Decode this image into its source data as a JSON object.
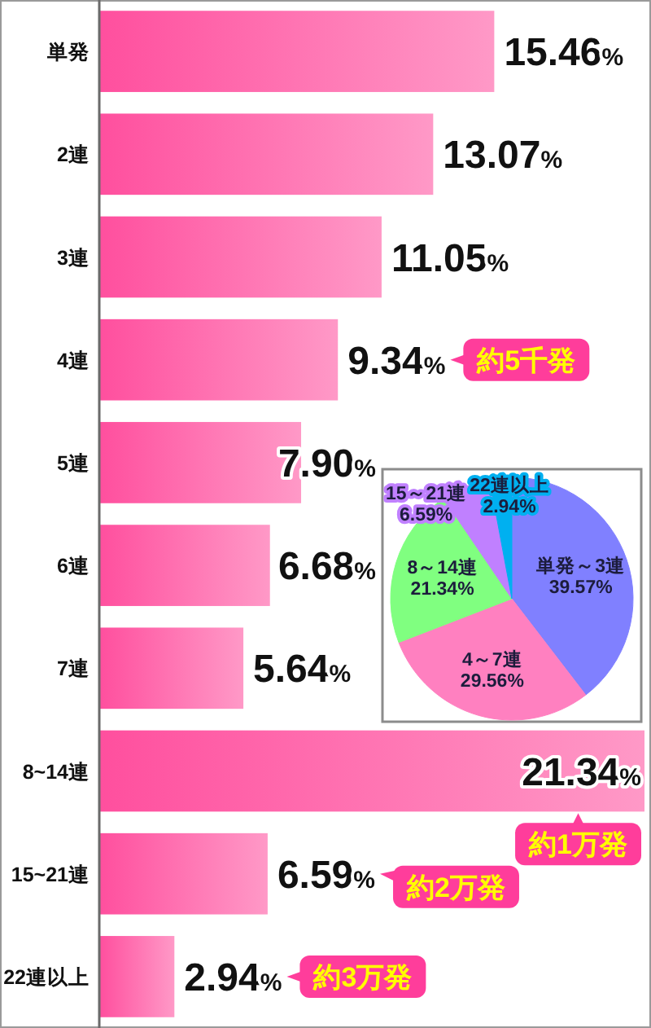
{
  "chart_data": [
    {
      "type": "bar",
      "orientation": "horizontal",
      "categories": [
        "単発",
        "2連",
        "3連",
        "4連",
        "5連",
        "6連",
        "7連",
        "8~14連",
        "15~21連",
        "22連以上"
      ],
      "values": [
        15.46,
        13.07,
        11.05,
        9.34,
        7.9,
        6.68,
        5.64,
        21.34,
        6.59,
        2.94
      ],
      "value_labels": [
        "15.46%",
        "13.07%",
        "11.05%",
        "9.34%",
        "7.90%",
        "6.68%",
        "5.64%",
        "21.34%",
        "6.59%",
        "2.94%"
      ],
      "color": "#ff4f9e",
      "annotations": [
        "約5千発",
        "約1万発",
        "約2万発",
        "約3万発"
      ]
    },
    {
      "type": "pie",
      "categories": [
        "単発～3連",
        "4～7連",
        "8～14連",
        "15～21連",
        "22連以上"
      ],
      "values": [
        39.57,
        29.56,
        21.34,
        6.59,
        2.94
      ],
      "value_labels": [
        "39.57%",
        "29.56%",
        "21.34%",
        "6.59%",
        "2.94%"
      ],
      "colors": [
        "#8080ff",
        "#ff80c0",
        "#80ff80",
        "#c080ff",
        "#00b0f0"
      ]
    }
  ]
}
